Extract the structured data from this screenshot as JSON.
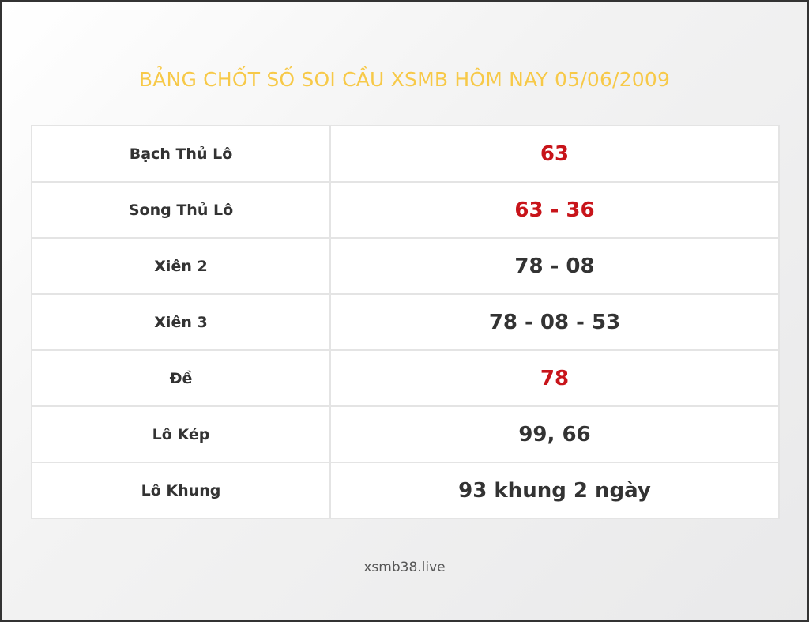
{
  "title": "BẢNG CHỐT SỐ SOI CẦU XSMB HÔM NAY 05/06/2009",
  "rows": [
    {
      "label": "Bạch Thủ Lô",
      "value": "63",
      "highlight": true
    },
    {
      "label": "Song Thủ Lô",
      "value": "63 - 36",
      "highlight": true
    },
    {
      "label": "Xiên 2",
      "value": "78 - 08",
      "highlight": false
    },
    {
      "label": "Xiên 3",
      "value": "78 - 08 - 53",
      "highlight": false
    },
    {
      "label": "Đề",
      "value": "78",
      "highlight": true
    },
    {
      "label": "Lô Kép",
      "value": "99, 66",
      "highlight": false
    },
    {
      "label": "Lô Khung",
      "value": "93 khung 2 ngày",
      "highlight": false
    }
  ],
  "footer": "xsmb38.live",
  "colors": {
    "title": "#f7c948",
    "highlight": "#c8141a",
    "text": "#333333"
  }
}
